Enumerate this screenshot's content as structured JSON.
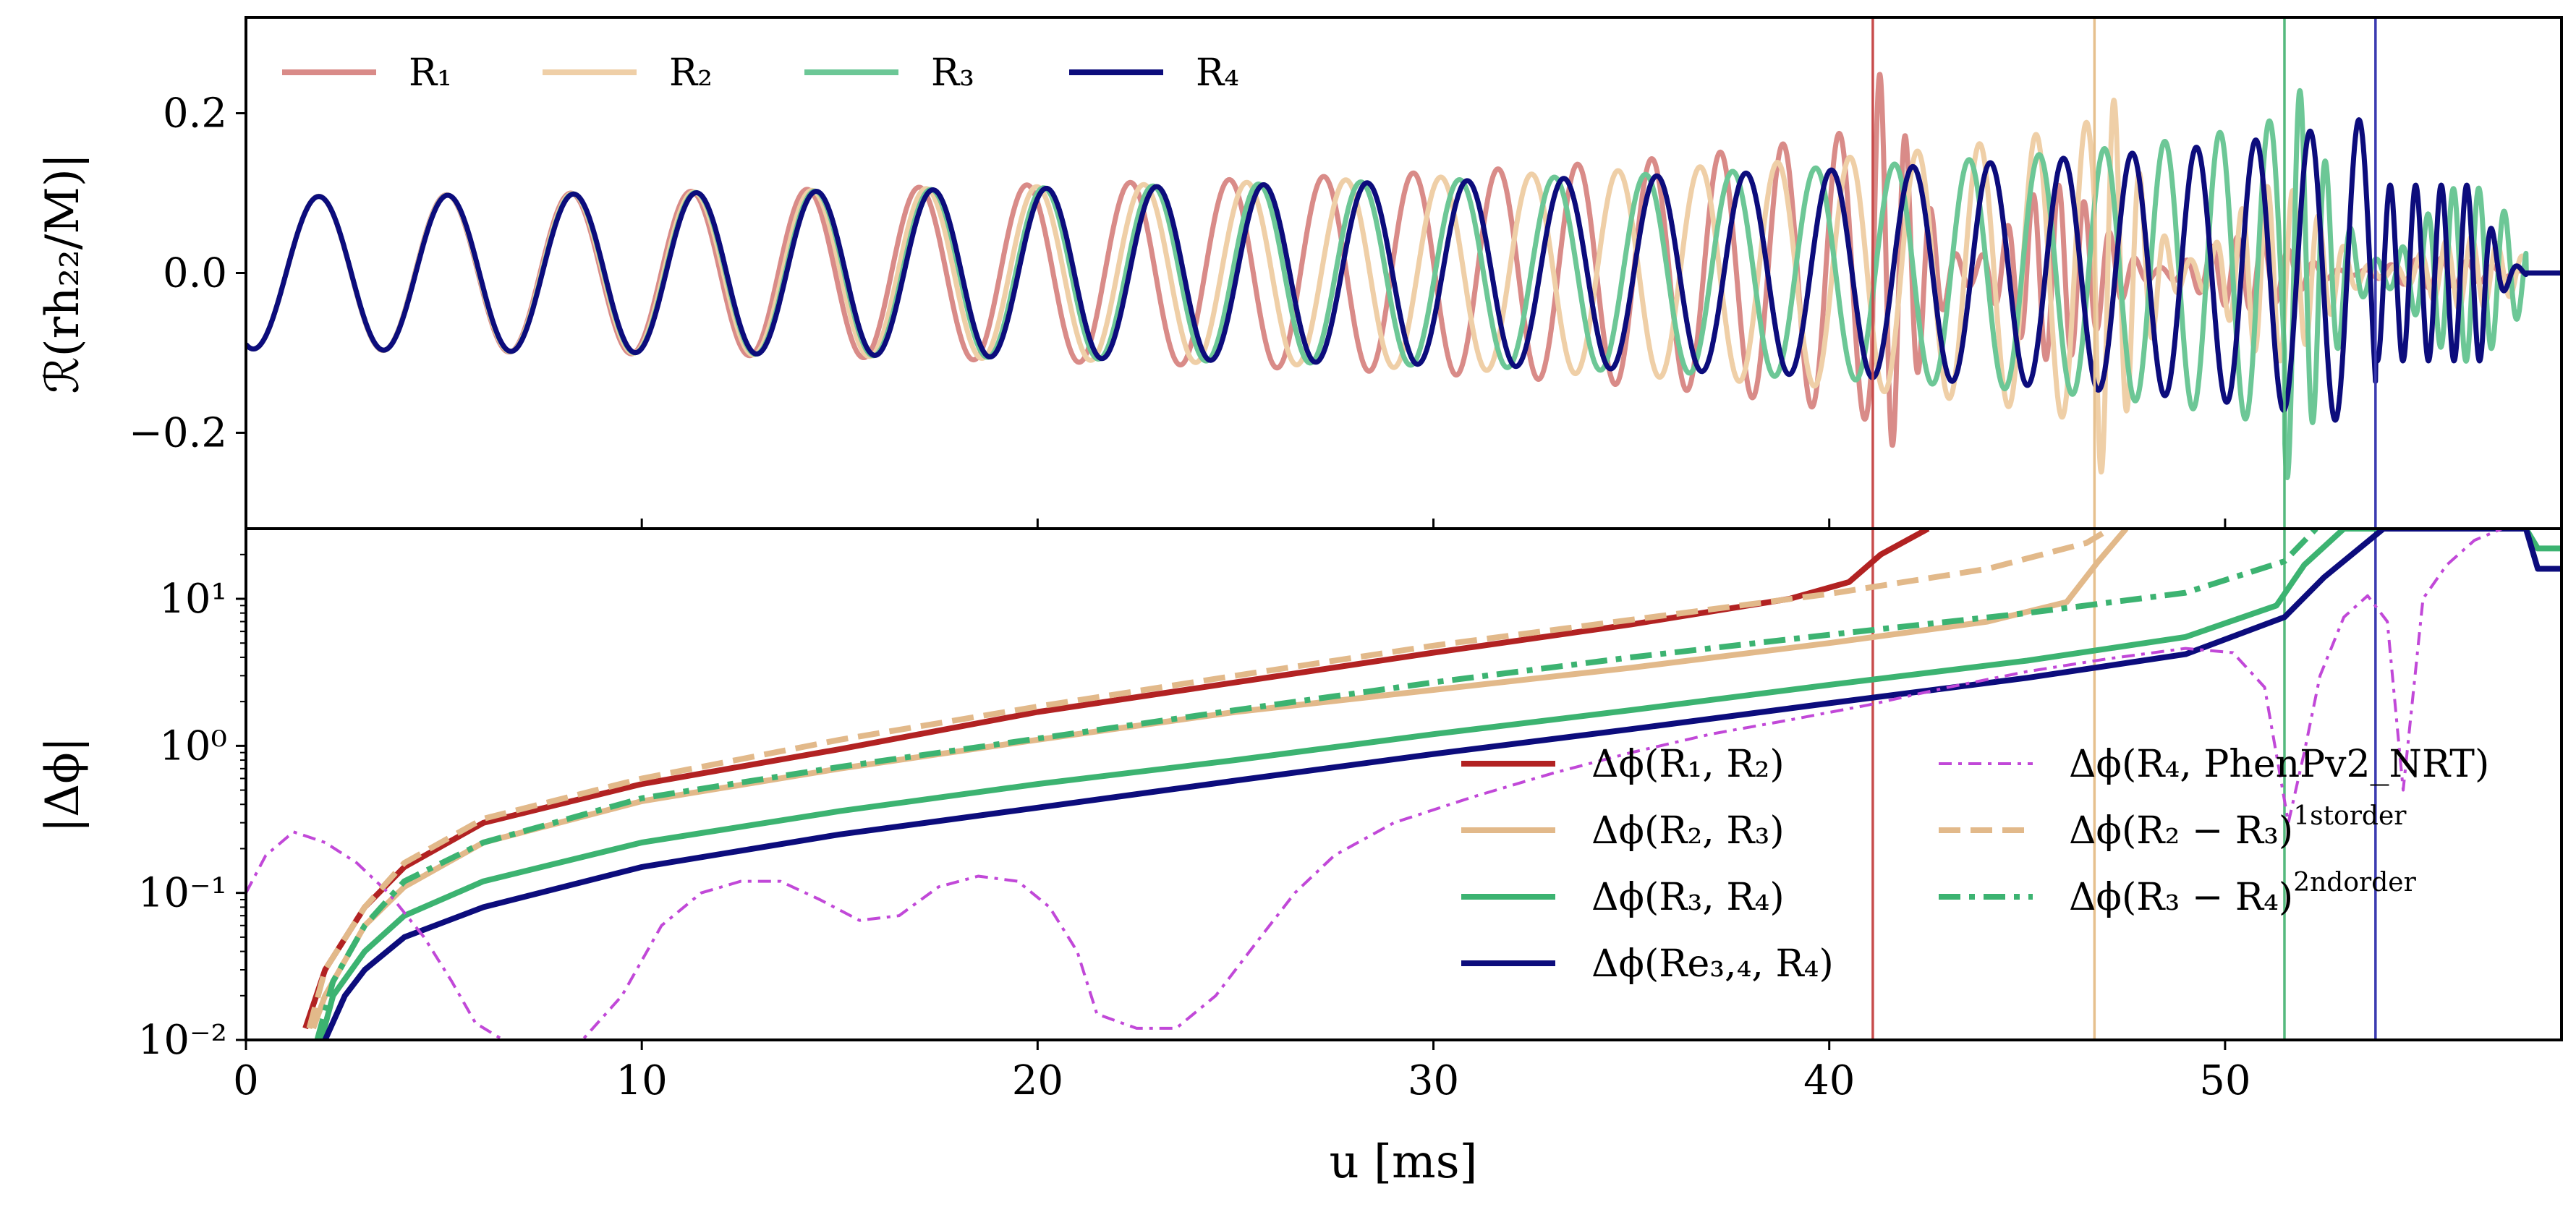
{
  "chart_data": [
    {
      "type": "line",
      "panel": "top",
      "ylabel": "ℛ(rh₂₂/M)|",
      "xlim": [
        0,
        58.5
      ],
      "ylim": [
        -0.32,
        0.32
      ],
      "yticks": [
        -0.2,
        0.0,
        0.2
      ],
      "ytick_labels": [
        "−0.2",
        "0.0",
        "0.2"
      ],
      "legend_placement": "top-left",
      "series": [
        {
          "name": "R₁",
          "color": "#d98b88",
          "end_ms": 41.1,
          "start_freq": 0.3,
          "end_freq": 1.45
        },
        {
          "name": "R₂",
          "color": "#efcfa7",
          "end_ms": 46.7,
          "start_freq": 0.3,
          "end_freq": 1.45
        },
        {
          "name": "R₃",
          "color": "#6cc796",
          "end_ms": 51.5,
          "start_freq": 0.3,
          "end_freq": 1.45
        },
        {
          "name": "R₄",
          "color": "#0c0c7c",
          "end_ms": 53.8,
          "start_freq": 0.3,
          "end_freq": 1.45
        }
      ],
      "vlines": [
        {
          "x": 41.1,
          "color": "#c84c4c"
        },
        {
          "x": 46.7,
          "color": "#e6c08e"
        },
        {
          "x": 51.5,
          "color": "#55b97d"
        },
        {
          "x": 53.8,
          "color": "#3a3ab0"
        }
      ]
    },
    {
      "type": "line",
      "panel": "bottom",
      "yscale": "log",
      "xlabel": "u [ms]",
      "ylabel": "|Δϕ|",
      "xlim": [
        0,
        58.5
      ],
      "ylim": [
        0.01,
        30
      ],
      "xticks": [
        0,
        10,
        20,
        30,
        40,
        50
      ],
      "xtick_labels": [
        "0",
        "10",
        "20",
        "30",
        "40",
        "50"
      ],
      "yticks": [
        0.01,
        0.1,
        1,
        10
      ],
      "ytick_labels": [
        "10⁻²",
        "10⁻¹",
        "10⁰",
        "10¹"
      ],
      "legend_placement": "lower-right",
      "series": [
        {
          "name": "Δϕ(R₁, R₂)",
          "color": "#b22222",
          "style": "solid",
          "x": [
            1.5,
            2,
            3,
            4,
            6,
            10,
            15,
            20,
            25,
            30,
            35,
            39,
            40.5,
            41.3,
            42.5
          ],
          "y": [
            0.012,
            0.03,
            0.08,
            0.15,
            0.3,
            0.55,
            0.95,
            1.7,
            2.7,
            4.3,
            6.7,
            10.0,
            13,
            20,
            30
          ]
        },
        {
          "name": "Δϕ(R₂, R₃)",
          "color": "#e2b98a",
          "style": "solid",
          "x": [
            1.7,
            2,
            3,
            4,
            6,
            10,
            15,
            20,
            25,
            30,
            35,
            40,
            44,
            46,
            46.8,
            47.5
          ],
          "y": [
            0.012,
            0.02,
            0.06,
            0.11,
            0.22,
            0.42,
            0.7,
            1.1,
            1.7,
            2.4,
            3.4,
            5.0,
            7.0,
            9.5,
            18,
            30
          ]
        },
        {
          "name": "Δϕ(R₃, R₄)",
          "color": "#3cb371",
          "style": "solid",
          "x": [
            1.9,
            2.2,
            3,
            4,
            6,
            10,
            15,
            20,
            25,
            30,
            35,
            40,
            45,
            49,
            51.3,
            52,
            53,
            57.6,
            57.9,
            58.5
          ],
          "y": [
            0.01,
            0.02,
            0.04,
            0.07,
            0.12,
            0.22,
            0.36,
            0.55,
            0.8,
            1.2,
            1.75,
            2.6,
            3.8,
            5.5,
            9,
            17,
            30,
            30,
            22,
            22
          ]
        },
        {
          "name": "Δϕ(Re₃,₄, R₄)",
          "color": "#0c0c7c",
          "style": "solid",
          "x": [
            2,
            2.5,
            3,
            4,
            6,
            10,
            15,
            20,
            25,
            30,
            35,
            40,
            45,
            49,
            51.5,
            52.5,
            54,
            57.6,
            57.9,
            58.5
          ],
          "y": [
            0.01,
            0.02,
            0.03,
            0.05,
            0.08,
            0.15,
            0.25,
            0.38,
            0.58,
            0.88,
            1.3,
            1.95,
            2.9,
            4.2,
            7.5,
            14,
            30,
            30,
            16,
            16
          ]
        },
        {
          "name": "Δϕ(R₄, PhenPv2_NRT)",
          "color": "#c148d8",
          "style": "dashdot-thin",
          "x": [
            0,
            0.5,
            1.2,
            2,
            2.8,
            3.6,
            4.5,
            5.2,
            5.8,
            6.5,
            7.5,
            8.5,
            9.5,
            10.5,
            11.5,
            12.5,
            13.5,
            14.5,
            15.5,
            16.5,
            17.5,
            18.5,
            19.5,
            20.3,
            21,
            21.5,
            22.5,
            23.5,
            24.5,
            25.5,
            26.5,
            27.5,
            29,
            31,
            33,
            35,
            37,
            39,
            41,
            43,
            45,
            47,
            49,
            50.2,
            51,
            51.6,
            52,
            52.4,
            53,
            53.6,
            54.1,
            54.5,
            55,
            55.6,
            56.3,
            57,
            57.5
          ],
          "y": [
            0.1,
            0.18,
            0.26,
            0.22,
            0.16,
            0.1,
            0.05,
            0.025,
            0.013,
            0.01,
            0.01,
            0.01,
            0.02,
            0.06,
            0.1,
            0.12,
            0.12,
            0.09,
            0.065,
            0.07,
            0.11,
            0.13,
            0.12,
            0.08,
            0.04,
            0.015,
            0.012,
            0.012,
            0.02,
            0.045,
            0.1,
            0.18,
            0.3,
            0.45,
            0.65,
            0.9,
            1.2,
            1.5,
            1.9,
            2.5,
            3.2,
            3.9,
            4.6,
            4.3,
            2.5,
            0.3,
            0.9,
            3,
            7.5,
            10.5,
            7,
            0.5,
            10,
            17,
            25,
            30,
            30
          ]
        },
        {
          "name": "Δϕ(R₂ − R₃)",
          "superscript": "1storder",
          "color": "#e2b98a",
          "style": "dashed",
          "x": [
            1.6,
            2,
            3,
            4,
            6,
            10,
            15,
            20,
            25,
            30,
            35,
            40,
            44,
            46.5,
            47.1
          ],
          "y": [
            0.012,
            0.03,
            0.08,
            0.16,
            0.32,
            0.6,
            1.1,
            1.85,
            3.0,
            4.8,
            7.2,
            10.8,
            16,
            24,
            30
          ]
        },
        {
          "name": "Δϕ(R₃ − R₄)",
          "superscript": "2ndorder",
          "color": "#3cb371",
          "style": "dashdot",
          "x": [
            1.8,
            2.2,
            3,
            4,
            6,
            10,
            15,
            20,
            25,
            30,
            35,
            40,
            45,
            49,
            51.5,
            52.3
          ],
          "y": [
            0.01,
            0.025,
            0.06,
            0.12,
            0.22,
            0.44,
            0.72,
            1.12,
            1.75,
            2.7,
            4.0,
            5.7,
            8.0,
            11,
            18,
            30
          ]
        }
      ]
    }
  ]
}
